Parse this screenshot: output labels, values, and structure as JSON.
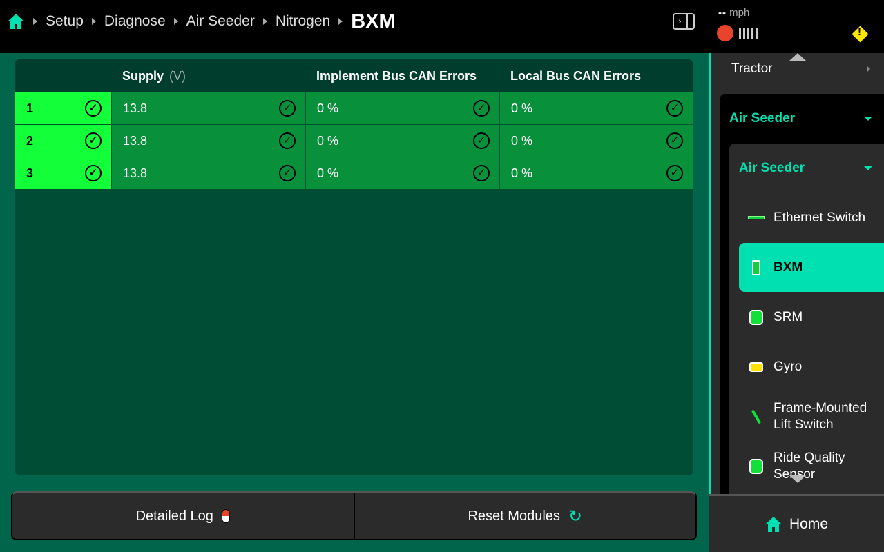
{
  "header": {
    "breadcrumbs": [
      "Setup",
      "Diagnose",
      "Air Seeder",
      "Nitrogen"
    ],
    "current": "BXM",
    "speed_value": "--",
    "speed_unit": "mph"
  },
  "table": {
    "columns": [
      {
        "label": "Supply",
        "unit": "(V)"
      },
      {
        "label": "Implement Bus CAN Errors"
      },
      {
        "label": "Local Bus CAN Errors"
      }
    ],
    "rows": [
      {
        "id": "1",
        "supply": "13.8",
        "implement": "0 %",
        "local": "0 %"
      },
      {
        "id": "2",
        "supply": "13.8",
        "implement": "0 %",
        "local": "0 %"
      },
      {
        "id": "3",
        "supply": "13.8",
        "implement": "0 %",
        "local": "0 %"
      }
    ],
    "status_icon": "check-circle-icon"
  },
  "buttons": {
    "detailed_log": "Detailed Log",
    "reset_modules": "Reset Modules"
  },
  "sidebar": {
    "tractor": "Tractor",
    "group": "Air Seeder",
    "subgroup": "Air Seeder",
    "items": [
      {
        "label": "Ethernet Switch"
      },
      {
        "label": "BXM",
        "selected": true
      },
      {
        "label": "SRM"
      },
      {
        "label": "Gyro"
      },
      {
        "label": "Frame-Mounted Lift Switch"
      },
      {
        "label": "Ride Quality Sensor"
      }
    ],
    "home": "Home"
  },
  "colors": {
    "accent": "#00e0b0",
    "ok_bright": "#12ff3a",
    "ok_cell": "#08903a",
    "warning": "#ffe600",
    "alert": "#e8442c"
  }
}
